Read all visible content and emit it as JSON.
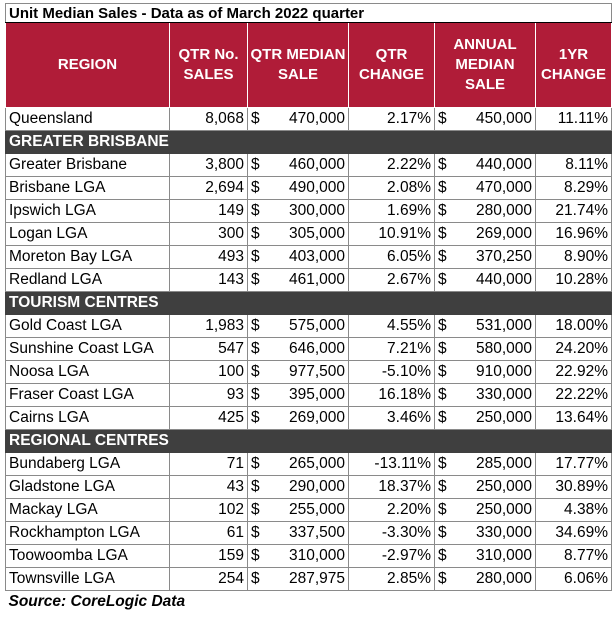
{
  "title": "Unit Median Sales - Data as of March 2022 quarter",
  "headers": {
    "region": "REGION",
    "qtr_sales_l1": "QTR No.",
    "qtr_sales_l2": "SALES",
    "qtr_median_l1": "QTR MEDIAN",
    "qtr_median_l2": "SALE",
    "qtr_change_l1": "QTR",
    "qtr_change_l2": "CHANGE",
    "annual_l1": "ANNUAL",
    "annual_l2": "MEDIAN",
    "annual_l3": "SALE",
    "yr_change_l1": "1YR",
    "yr_change_l2": "CHANGE"
  },
  "currency_symbol": "$",
  "queensland": {
    "region": "Queensland",
    "sales": "8,068",
    "median": "470,000",
    "qtr_change": "2.17%",
    "annual": "450,000",
    "yr_change": "11.11%"
  },
  "sections": [
    {
      "title": "GREATER BRISBANE",
      "rows": [
        {
          "region": "Greater Brisbane",
          "sales": "3,800",
          "median": "460,000",
          "qtr_change": "2.22%",
          "annual": "440,000",
          "yr_change": "8.11%"
        },
        {
          "region": "Brisbane LGA",
          "sales": "2,694",
          "median": "490,000",
          "qtr_change": "2.08%",
          "annual": "470,000",
          "yr_change": "8.29%"
        },
        {
          "region": "Ipswich LGA",
          "sales": "149",
          "median": "300,000",
          "qtr_change": "1.69%",
          "annual": "280,000",
          "yr_change": "21.74%"
        },
        {
          "region": "Logan LGA",
          "sales": "300",
          "median": "305,000",
          "qtr_change": "10.91%",
          "annual": "269,000",
          "yr_change": "16.96%"
        },
        {
          "region": "Moreton Bay LGA",
          "sales": "493",
          "median": "403,000",
          "qtr_change": "6.05%",
          "annual": "370,250",
          "yr_change": "8.90%"
        },
        {
          "region": "Redland LGA",
          "sales": "143",
          "median": "461,000",
          "qtr_change": "2.67%",
          "annual": "440,000",
          "yr_change": "10.28%"
        }
      ]
    },
    {
      "title": "TOURISM CENTRES",
      "rows": [
        {
          "region": "Gold Coast LGA",
          "sales": "1,983",
          "median": "575,000",
          "qtr_change": "4.55%",
          "annual": "531,000",
          "yr_change": "18.00%"
        },
        {
          "region": "Sunshine Coast LGA",
          "sales": "547",
          "median": "646,000",
          "qtr_change": "7.21%",
          "annual": "580,000",
          "yr_change": "24.20%"
        },
        {
          "region": "Noosa LGA",
          "sales": "100",
          "median": "977,500",
          "qtr_change": "-5.10%",
          "annual": "910,000",
          "yr_change": "22.92%"
        },
        {
          "region": "Fraser Coast LGA",
          "sales": "93",
          "median": "395,000",
          "qtr_change": "16.18%",
          "annual": "330,000",
          "yr_change": "22.22%"
        },
        {
          "region": "Cairns LGA",
          "sales": "425",
          "median": "269,000",
          "qtr_change": "3.46%",
          "annual": "250,000",
          "yr_change": "13.64%"
        }
      ]
    },
    {
      "title": "REGIONAL CENTRES",
      "rows": [
        {
          "region": "Bundaberg LGA",
          "sales": "71",
          "median": "265,000",
          "qtr_change": "-13.11%",
          "annual": "285,000",
          "yr_change": "17.77%"
        },
        {
          "region": "Gladstone LGA",
          "sales": "43",
          "median": "290,000",
          "qtr_change": "18.37%",
          "annual": "250,000",
          "yr_change": "30.89%"
        },
        {
          "region": "Mackay LGA",
          "sales": "102",
          "median": "255,000",
          "qtr_change": "2.20%",
          "annual": "250,000",
          "yr_change": "4.38%"
        },
        {
          "region": "Rockhampton LGA",
          "sales": "61",
          "median": "337,500",
          "qtr_change": "-3.30%",
          "annual": "330,000",
          "yr_change": "34.69%"
        },
        {
          "region": "Toowoomba LGA",
          "sales": "159",
          "median": "310,000",
          "qtr_change": "-2.97%",
          "annual": "310,000",
          "yr_change": "8.77%"
        },
        {
          "region": "Townsville LGA",
          "sales": "254",
          "median": "287,975",
          "qtr_change": "2.85%",
          "annual": "280,000",
          "yr_change": "6.06%"
        }
      ]
    }
  ],
  "source": "Source: CoreLogic Data"
}
